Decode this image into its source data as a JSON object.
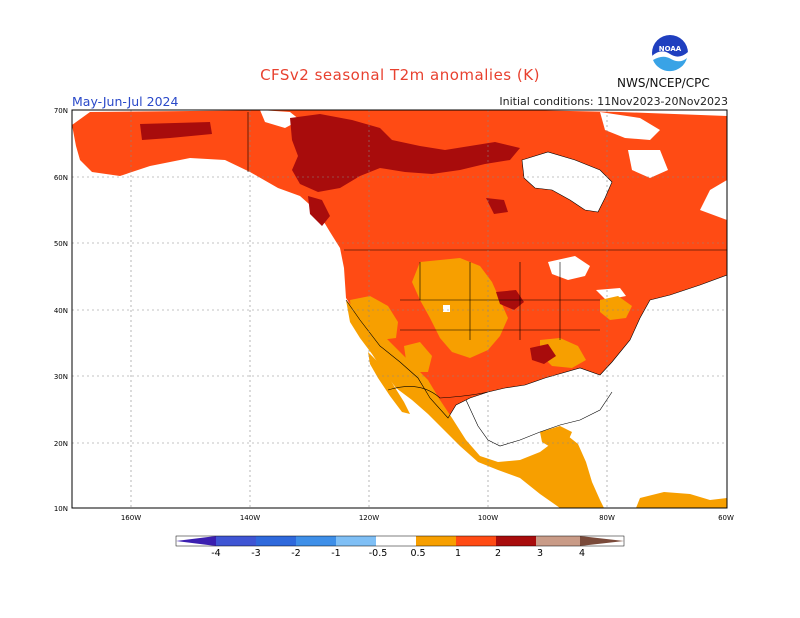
{
  "header": {
    "title": "CFSv2 seasonal T2m anomalies (K)",
    "season": "May-Jun-Jul 2024",
    "initial_conditions": "Initial conditions: 11Nov2023-20Nov2023",
    "agency": "NWS/NCEP/CPC",
    "logo_text": "NOAA"
  },
  "map": {
    "lat_labels": [
      "70N",
      "60N",
      "50N",
      "40N",
      "30N",
      "20N",
      "10N"
    ],
    "lon_labels": [
      "160W",
      "140W",
      "120W",
      "100W",
      "80W",
      "60W"
    ]
  },
  "colorbar": {
    "labels": [
      "-4",
      "-3",
      "-2",
      "-1",
      "-0.5",
      "0.5",
      "1",
      "2",
      "3",
      "4"
    ],
    "colors": [
      "#3b1fb0",
      "#3f55d4",
      "#2f7fe0",
      "#4aa0ee",
      "#7fbff5",
      "#ffffff",
      "#f79f00",
      "#ff4b14",
      "#e0250c",
      "#a80c0c",
      "#c99b87",
      "#7a4a3a"
    ]
  }
}
